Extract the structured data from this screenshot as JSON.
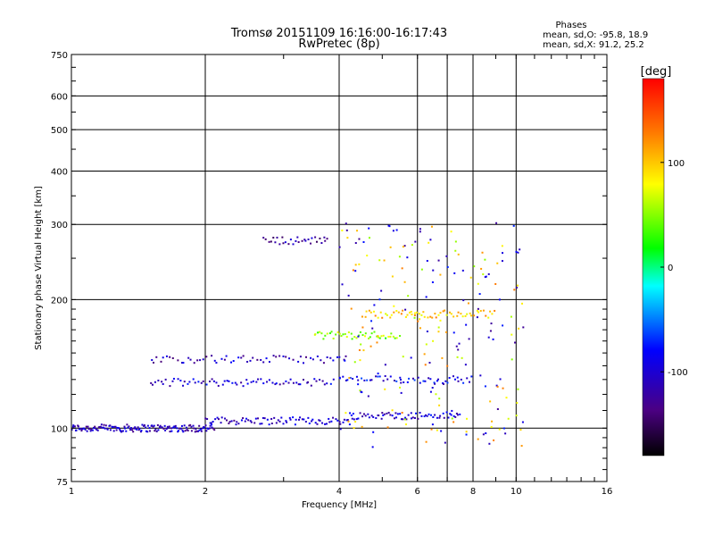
{
  "chart_data": {
    "type": "scatter",
    "title": "Tromsø 20151109 16:16:00-16:17:43",
    "subtitle": "RwPretec (8p)",
    "xlabel": "Frequency [MHz]",
    "ylabel": "Stationary phase Virtual Height [km]",
    "x_scale": "log",
    "y_scale": "log",
    "xlim": [
      1,
      16
    ],
    "ylim": [
      75,
      750
    ],
    "grid": true,
    "x_ticks": [
      "1",
      "2",
      "4",
      "6",
      "8",
      "10",
      "16"
    ],
    "x_tick_values": [
      1,
      2,
      4,
      6,
      8,
      10,
      16
    ],
    "y_ticks": [
      "750",
      "600",
      "500",
      "400",
      "300",
      "200",
      "100",
      "75"
    ],
    "y_tick_values": [
      750,
      600,
      500,
      400,
      300,
      200,
      100,
      75
    ],
    "x_minor_gridlines": [
      7
    ],
    "phases_label": {
      "heading": "Phases",
      "line_o": "mean, sd,O: -95.8, 18.9",
      "line_x": "mean, sd,X:  91.2, 25.2"
    },
    "colorbar": {
      "label": "[deg]",
      "range": [
        -180,
        180
      ],
      "ticks": [
        "100",
        "0",
        "-100"
      ],
      "tick_values": [
        100,
        0,
        -100
      ]
    },
    "traces": [
      {
        "name": "",
        "x_range": [
          1.0,
          2.1
        ],
        "height": 100,
        "phase": -110,
        "density": 150
      },
      {
        "name": "",
        "x_range": [
          2.0,
          4.3
        ],
        "height": 104,
        "phase": -105,
        "density": 80
      },
      {
        "name": "",
        "x_range": [
          4.2,
          7.5
        ],
        "height": 107,
        "phase": -100,
        "density": 60
      },
      {
        "name": "",
        "x_range": [
          1.5,
          3.9
        ],
        "height": 128,
        "phase": -100,
        "density": 70
      },
      {
        "name": "",
        "x_range": [
          4.0,
          8.0
        ],
        "height": 130,
        "phase": -90,
        "density": 50
      },
      {
        "name": "",
        "x_range": [
          1.5,
          4.2
        ],
        "height": 145,
        "phase": -110,
        "density": 60
      },
      {
        "name": "",
        "x_range": [
          3.5,
          5.5
        ],
        "height": 165,
        "phase": 50,
        "density": 45
      },
      {
        "name": "",
        "x_range": [
          2.7,
          3.8
        ],
        "height": 275,
        "phase": -120,
        "density": 30
      },
      {
        "name": "",
        "x_range": [
          4.5,
          9.0
        ],
        "height": 185,
        "phase": 100,
        "density": 60
      }
    ]
  }
}
